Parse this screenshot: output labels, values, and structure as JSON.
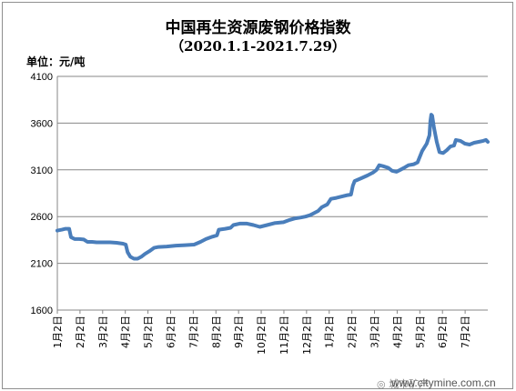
{
  "chart_data": {
    "type": "line",
    "title": "中国再生资源废钢价格指数",
    "subtitle": "（2020.1.1-2021.7.29）",
    "ylabel": "单位：元/吨",
    "ylim": [
      1600,
      4100
    ],
    "yticks": [
      1600,
      2100,
      2600,
      3100,
      3600,
      4100
    ],
    "xticks": [
      "1月2日",
      "2月2日",
      "3月2日",
      "4月2日",
      "5月2日",
      "6月2日",
      "7月2日",
      "8月2日",
      "9月2日",
      "10月2日",
      "11月2日",
      "12月2日",
      "1月2日",
      "2月2日",
      "3月2日",
      "4月2日",
      "5月2日",
      "6月2日",
      "7月2日"
    ],
    "grid": true,
    "legend": "none",
    "line_color": "#4a7ebb",
    "series": [
      {
        "values": [
          [
            0,
            2450
          ],
          [
            5,
            2460
          ],
          [
            9,
            2470
          ],
          [
            13,
            2470
          ],
          [
            15,
            2380
          ],
          [
            19,
            2360
          ],
          [
            24,
            2360
          ],
          [
            29,
            2355
          ],
          [
            33,
            2330
          ],
          [
            38,
            2330
          ],
          [
            43,
            2325
          ],
          [
            48,
            2325
          ],
          [
            58,
            2325
          ],
          [
            65,
            2320
          ],
          [
            72,
            2310
          ],
          [
            75,
            2300
          ],
          [
            77,
            2220
          ],
          [
            80,
            2170
          ],
          [
            84,
            2150
          ],
          [
            88,
            2150
          ],
          [
            92,
            2170
          ],
          [
            96,
            2200
          ],
          [
            101,
            2230
          ],
          [
            106,
            2265
          ],
          [
            111,
            2275
          ],
          [
            120,
            2280
          ],
          [
            130,
            2290
          ],
          [
            140,
            2295
          ],
          [
            150,
            2300
          ],
          [
            157,
            2330
          ],
          [
            163,
            2360
          ],
          [
            170,
            2385
          ],
          [
            175,
            2400
          ],
          [
            177,
            2460
          ],
          [
            184,
            2470
          ],
          [
            190,
            2480
          ],
          [
            193,
            2510
          ],
          [
            200,
            2525
          ],
          [
            208,
            2525
          ],
          [
            215,
            2510
          ],
          [
            222,
            2490
          ],
          [
            230,
            2510
          ],
          [
            238,
            2530
          ],
          [
            248,
            2540
          ],
          [
            255,
            2565
          ],
          [
            260,
            2580
          ],
          [
            267,
            2590
          ],
          [
            272,
            2600
          ],
          [
            277,
            2615
          ],
          [
            280,
            2630
          ],
          [
            286,
            2660
          ],
          [
            290,
            2700
          ],
          [
            296,
            2730
          ],
          [
            300,
            2790
          ],
          [
            306,
            2800
          ],
          [
            312,
            2815
          ],
          [
            318,
            2830
          ],
          [
            322,
            2835
          ],
          [
            324,
            2930
          ],
          [
            326,
            2980
          ],
          [
            333,
            3010
          ],
          [
            340,
            3040
          ],
          [
            346,
            3070
          ],
          [
            350,
            3100
          ],
          [
            353,
            3150
          ],
          [
            357,
            3140
          ],
          [
            363,
            3120
          ],
          [
            367,
            3090
          ],
          [
            372,
            3080
          ],
          [
            376,
            3100
          ],
          [
            380,
            3120
          ],
          [
            385,
            3150
          ],
          [
            391,
            3160
          ],
          [
            395,
            3180
          ],
          [
            400,
            3300
          ],
          [
            405,
            3380
          ],
          [
            408,
            3470
          ],
          [
            409,
            3620
          ],
          [
            410,
            3690
          ],
          [
            411,
            3680
          ],
          [
            413,
            3550
          ],
          [
            416,
            3400
          ],
          [
            419,
            3290
          ],
          [
            423,
            3280
          ],
          [
            427,
            3310
          ],
          [
            431,
            3350
          ],
          [
            435,
            3360
          ],
          [
            437,
            3420
          ],
          [
            442,
            3410
          ],
          [
            447,
            3380
          ],
          [
            452,
            3370
          ],
          [
            457,
            3390
          ],
          [
            462,
            3400
          ],
          [
            467,
            3410
          ],
          [
            470,
            3420
          ],
          [
            472,
            3400
          ]
        ]
      }
    ]
  },
  "page": {
    "unit_label": "单位：元/吨",
    "watermark": "www.citymine.com.cn",
    "watermark_logo": "◎ 城市矿产"
  }
}
